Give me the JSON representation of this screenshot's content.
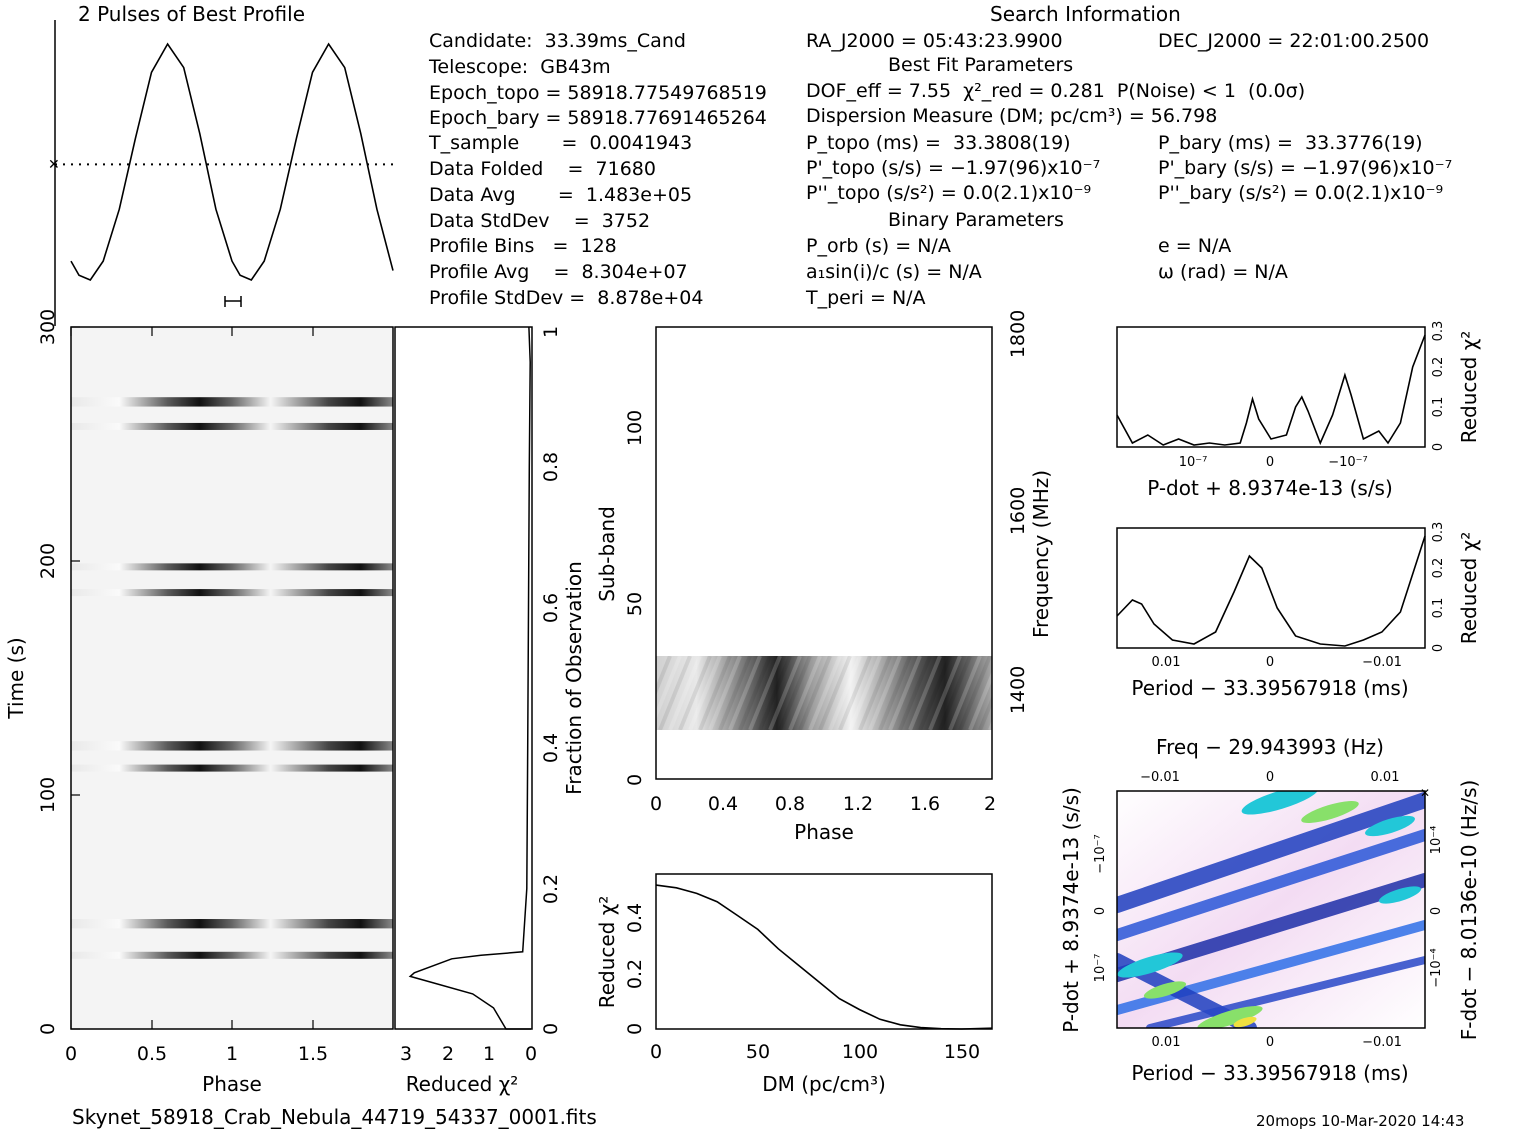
{
  "footer": {
    "filename": "Skynet_58918_Crab_Nebula_44719_54337_0001.fits",
    "stamp": "20mops 10-Mar-2020 14:43"
  },
  "header": {
    "profile_title": "2 Pulses of Best Profile",
    "search_title": "Search Information",
    "best_fit_title": "Best Fit Parameters",
    "binary_title": "Binary Parameters"
  },
  "info": {
    "candidate": "Candidate:  33.39ms_Cand",
    "telescope": "Telescope:  GB43m",
    "epoch_topo": "Epoch_topo = 58918.77549768519",
    "epoch_bary": "Epoch_bary = 58918.77691465264",
    "t_sample": "T_sample       =  0.0041943",
    "data_folded": "Data Folded    =  71680",
    "data_avg": "Data Avg       =  1.483e+05",
    "data_stddev": "Data StdDev    =  3752",
    "profile_bins": "Profile Bins   =  128",
    "profile_avg": "Profile Avg    =  8.304e+07",
    "profile_stddev": "Profile StdDev =  8.878e+04",
    "ra": "RA_J2000 = 05:43:23.9900",
    "dec": "DEC_J2000 = 22:01:00.2500",
    "dof": "DOF_eff = 7.55  χ²_red = 0.281  P(Noise) < 1  (0.0σ)",
    "dm": "Dispersion Measure (DM; pc/cm³) = 56.798",
    "p_topo": "P_topo (ms) =  33.3808(19)",
    "p_bary": "P_bary (ms) =  33.3776(19)",
    "pd_topo": "P'_topo (s/s) = −1.97(96)x10⁻⁷",
    "pd_bary": "P'_bary (s/s) = −1.97(96)x10⁻⁷",
    "pdd_topo": "P''_topo (s/s²) = 0.0(2.1)x10⁻⁹",
    "pdd_bary": "P''_bary (s/s²) = 0.0(2.1)x10⁻⁹",
    "p_orb": "P_orb (s) = N/A",
    "e": "e = N/A",
    "a1sini": "a₁sin(i)/c (s) = N/A",
    "omega": "ω (rad) = N/A",
    "t_peri": "T_peri = N/A"
  },
  "chart_data": [
    {
      "id": "best_profile",
      "type": "line",
      "title": "2 Pulses of Best Profile",
      "x_range": [
        0,
        2
      ],
      "shape": "two sinusoid-like pulses; minima near phase 0.12 and 1.12, maxima near phase 0.6 and 1.6",
      "points": [
        [
          0.0,
          0.08
        ],
        [
          0.05,
          0.02
        ],
        [
          0.12,
          0.0
        ],
        [
          0.2,
          0.08
        ],
        [
          0.3,
          0.3
        ],
        [
          0.4,
          0.6
        ],
        [
          0.5,
          0.88
        ],
        [
          0.6,
          1.0
        ],
        [
          0.7,
          0.9
        ],
        [
          0.8,
          0.62
        ],
        [
          0.9,
          0.3
        ],
        [
          1.0,
          0.08
        ],
        [
          1.05,
          0.02
        ],
        [
          1.12,
          0.0
        ],
        [
          1.2,
          0.08
        ],
        [
          1.3,
          0.3
        ],
        [
          1.4,
          0.6
        ],
        [
          1.5,
          0.88
        ],
        [
          1.6,
          1.0
        ],
        [
          1.7,
          0.9
        ],
        [
          1.8,
          0.62
        ],
        [
          1.9,
          0.3
        ],
        [
          2.0,
          0.04
        ]
      ],
      "dotted_line_level": 0.49
    },
    {
      "id": "time_phase",
      "type": "heatmap",
      "xlabel": "Phase",
      "ylabel": "Time (s)",
      "x_range": [
        0,
        2
      ],
      "y_range": [
        0,
        300
      ],
      "x_ticks": [
        "0",
        "0.5",
        "1",
        "1.5"
      ],
      "y_ticks": [
        "0",
        "100",
        "200",
        "300"
      ],
      "dark_bands_time_s": [
        [
          30,
          33
        ],
        [
          43,
          47
        ],
        [
          110,
          113
        ],
        [
          119,
          123
        ],
        [
          185,
          188
        ],
        [
          196,
          199
        ],
        [
          256,
          259
        ],
        [
          266,
          270
        ]
      ]
    },
    {
      "id": "reduced_chi2_vs_time",
      "type": "line",
      "xlabel": "Reduced χ²",
      "x_ticks": [
        "3",
        "2",
        "1",
        "0"
      ],
      "y2label": "Fraction of Observation",
      "y2_ticks": [
        "0",
        "0.2",
        "0.4",
        "0.6",
        "0.8",
        "1"
      ],
      "points": [
        [
          0.0,
          0.0
        ],
        [
          0.6,
          0.0
        ],
        [
          0.9,
          0.03
        ],
        [
          1.4,
          0.05
        ],
        [
          2.3,
          0.065
        ],
        [
          2.9,
          0.075
        ],
        [
          2.8,
          0.08
        ],
        [
          1.9,
          0.1
        ],
        [
          1.2,
          0.105
        ],
        [
          0.2,
          0.11
        ],
        [
          0.1,
          0.2
        ],
        [
          0.08,
          0.4
        ],
        [
          0.06,
          0.6
        ],
        [
          0.04,
          0.8
        ],
        [
          0.02,
          0.95
        ],
        [
          0.05,
          1.0
        ]
      ]
    },
    {
      "id": "subband_phase",
      "type": "heatmap",
      "xlabel": "Phase",
      "ylabel": "Sub-band",
      "y2label": "Frequency (MHz)",
      "x_ticks": [
        "0",
        "0.4",
        "0.8",
        "1.2",
        "1.6",
        "2"
      ],
      "y_ticks": [
        "0",
        "50",
        "100"
      ],
      "y2_ticks": [
        "1400",
        "1600",
        "1800"
      ],
      "x_range": [
        0,
        2
      ],
      "y_range": [
        0,
        128
      ],
      "signal_subbands": [
        15,
        35
      ]
    },
    {
      "id": "dm_curve",
      "type": "line",
      "xlabel": "DM (pc/cm³)",
      "ylabel": "Reduced χ²",
      "x_ticks": [
        "0",
        "50",
        "100",
        "150"
      ],
      "y_ticks": [
        "0",
        "0.2",
        "0.4"
      ],
      "x_range": [
        0,
        165
      ],
      "y_range": [
        0,
        0.56
      ],
      "points": [
        [
          0,
          0.52
        ],
        [
          10,
          0.51
        ],
        [
          20,
          0.49
        ],
        [
          30,
          0.46
        ],
        [
          40,
          0.41
        ],
        [
          50,
          0.36
        ],
        [
          60,
          0.29
        ],
        [
          70,
          0.23
        ],
        [
          80,
          0.17
        ],
        [
          90,
          0.11
        ],
        [
          100,
          0.07
        ],
        [
          110,
          0.035
        ],
        [
          120,
          0.015
        ],
        [
          130,
          0.005
        ],
        [
          140,
          0.001
        ],
        [
          150,
          0.0
        ],
        [
          165,
          0.003
        ]
      ]
    },
    {
      "id": "pdot_curve",
      "type": "line",
      "xlabel": "P-dot + 8.9374e-13 (s/s)",
      "ylabel": "Reduced χ²",
      "x_ticks": [
        "10⁻⁷",
        "0",
        "−10⁻⁷"
      ],
      "y_ticks": [
        "0",
        "0.1",
        "0.2",
        "0.3"
      ],
      "y_range": [
        0,
        0.3
      ],
      "points": [
        [
          0.0,
          0.08
        ],
        [
          0.05,
          0.01
        ],
        [
          0.1,
          0.03
        ],
        [
          0.15,
          0.005
        ],
        [
          0.2,
          0.02
        ],
        [
          0.25,
          0.005
        ],
        [
          0.3,
          0.01
        ],
        [
          0.35,
          0.005
        ],
        [
          0.4,
          0.01
        ],
        [
          0.42,
          0.06
        ],
        [
          0.44,
          0.12
        ],
        [
          0.46,
          0.07
        ],
        [
          0.5,
          0.02
        ],
        [
          0.55,
          0.03
        ],
        [
          0.58,
          0.1
        ],
        [
          0.6,
          0.125
        ],
        [
          0.62,
          0.09
        ],
        [
          0.66,
          0.01
        ],
        [
          0.7,
          0.08
        ],
        [
          0.74,
          0.18
        ],
        [
          0.76,
          0.13
        ],
        [
          0.8,
          0.02
        ],
        [
          0.85,
          0.04
        ],
        [
          0.88,
          0.01
        ],
        [
          0.92,
          0.06
        ],
        [
          0.96,
          0.2
        ],
        [
          1.0,
          0.28
        ]
      ]
    },
    {
      "id": "period_curve",
      "type": "line",
      "xlabel": "Period − 33.39567918 (ms)",
      "ylabel": "Reduced χ²",
      "x_ticks": [
        "0.01",
        "0",
        "−0.01"
      ],
      "y_ticks": [
        "0",
        "0.1",
        "0.2",
        "0.3"
      ],
      "y_range": [
        0,
        0.3
      ],
      "points": [
        [
          0.0,
          0.08
        ],
        [
          0.05,
          0.12
        ],
        [
          0.08,
          0.11
        ],
        [
          0.12,
          0.06
        ],
        [
          0.18,
          0.02
        ],
        [
          0.25,
          0.01
        ],
        [
          0.32,
          0.04
        ],
        [
          0.38,
          0.14
        ],
        [
          0.43,
          0.23
        ],
        [
          0.47,
          0.2
        ],
        [
          0.52,
          0.1
        ],
        [
          0.58,
          0.03
        ],
        [
          0.66,
          0.01
        ],
        [
          0.74,
          0.005
        ],
        [
          0.8,
          0.02
        ],
        [
          0.86,
          0.04
        ],
        [
          0.92,
          0.09
        ],
        [
          1.0,
          0.28
        ]
      ]
    },
    {
      "id": "period_pdot_plane",
      "type": "heatmap",
      "title": "Freq − 29.943993 (Hz)",
      "xlabel": "Period − 33.39567918 (ms)",
      "ylabel": "P-dot + 8.9374e-13 (s/s)",
      "y2label": "F-dot − 8.0136e-10 (Hz/s)",
      "x_ticks": [
        "0.01",
        "0",
        "−0.01"
      ],
      "top_ticks": [
        "−0.01",
        "0",
        "0.01"
      ],
      "y_ticks": [
        "10⁻⁷",
        "0",
        "−10⁻⁷"
      ],
      "y2_ticks": [
        "−10⁻⁴",
        "0",
        "10⁻⁴"
      ]
    }
  ]
}
